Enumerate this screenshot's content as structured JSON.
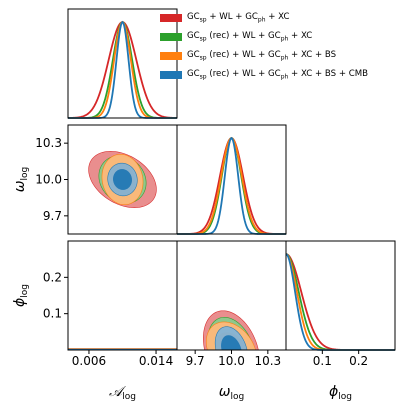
{
  "chart_data": {
    "type": "corner",
    "parameters": [
      {
        "key": "A",
        "symbol": "𝒜",
        "sub": "log",
        "range": [
          0.0035,
          0.0165
        ],
        "ticks": [
          "0.006",
          "0.014"
        ],
        "tick_values": [
          0.006,
          0.014
        ]
      },
      {
        "key": "w",
        "symbol": "ω",
        "sub": "log",
        "range": [
          9.55,
          10.45
        ],
        "ticks": [
          "9.7",
          "10.0",
          "10.3"
        ],
        "tick_values": [
          9.7,
          10.0,
          10.3
        ]
      },
      {
        "key": "phi",
        "symbol": "ϕ",
        "sub": "log",
        "range": [
          0.0,
          0.3
        ],
        "ticks": [
          "0.1",
          "0.2"
        ],
        "tick_values": [
          0.1,
          0.2
        ],
        "y_ticks": [
          "0.1",
          "0.2"
        ]
      }
    ],
    "series": [
      {
        "name": "GCsp + WL + GCph + XC",
        "color": "#d62728",
        "A": {
          "mean": 0.01,
          "sigma": 0.00165
        },
        "w": {
          "mean": 10.0,
          "sigma": 0.095
        },
        "phi": {
          "scale": 0.042
        },
        "corr_Aw": -0.35,
        "corr_Aphi": 0.0,
        "corr_wphi": -0.3
      },
      {
        "name": "GCsp (rec) + WL + GCph + XC",
        "color": "#2ca02c",
        "A": {
          "mean": 0.01,
          "sigma": 0.00115
        },
        "w": {
          "mean": 10.0,
          "sigma": 0.08
        },
        "phi": {
          "scale": 0.035
        },
        "corr_Aw": -0.15,
        "corr_Aphi": 0.0,
        "corr_wphi": -0.3
      },
      {
        "name": "GCsp (rec) + WL + GCph + XC + BS",
        "color": "#ff7f0e",
        "A": {
          "mean": 0.01,
          "sigma": 0.001
        },
        "w": {
          "mean": 10.0,
          "sigma": 0.085
        },
        "phi": {
          "scale": 0.03
        },
        "corr_Aw": -0.1,
        "corr_Aphi": 0.0,
        "corr_wphi": -0.3
      },
      {
        "name": "GCsp (rec) + WL + GCph + XC + BS + CMB",
        "color": "#1f77b4",
        "A": {
          "mean": 0.01,
          "sigma": 0.00072
        },
        "w": {
          "mean": 10.0,
          "sigma": 0.055
        },
        "phi": {
          "scale": 0.025
        },
        "corr_Aw": -0.05,
        "corr_Aphi": 0.0,
        "corr_wphi": -0.3
      }
    ]
  },
  "legend": [
    {
      "label_parts": [
        "GC",
        "sp",
        " + WL + GC",
        "ph",
        " + XC"
      ],
      "color": "#d62728"
    },
    {
      "label_parts": [
        "GC",
        "sp",
        " (rec) + WL + GC",
        "ph",
        " + XC"
      ],
      "color": "#2ca02c"
    },
    {
      "label_parts": [
        "GC",
        "sp",
        " (rec) + WL + GC",
        "ph",
        " + XC + BS"
      ],
      "color": "#ff7f0e"
    },
    {
      "label_parts": [
        "GC",
        "sp",
        " (rec) + WL + GC",
        "ph",
        " + XC + BS + CMB"
      ],
      "color": "#1f77b4"
    }
  ]
}
